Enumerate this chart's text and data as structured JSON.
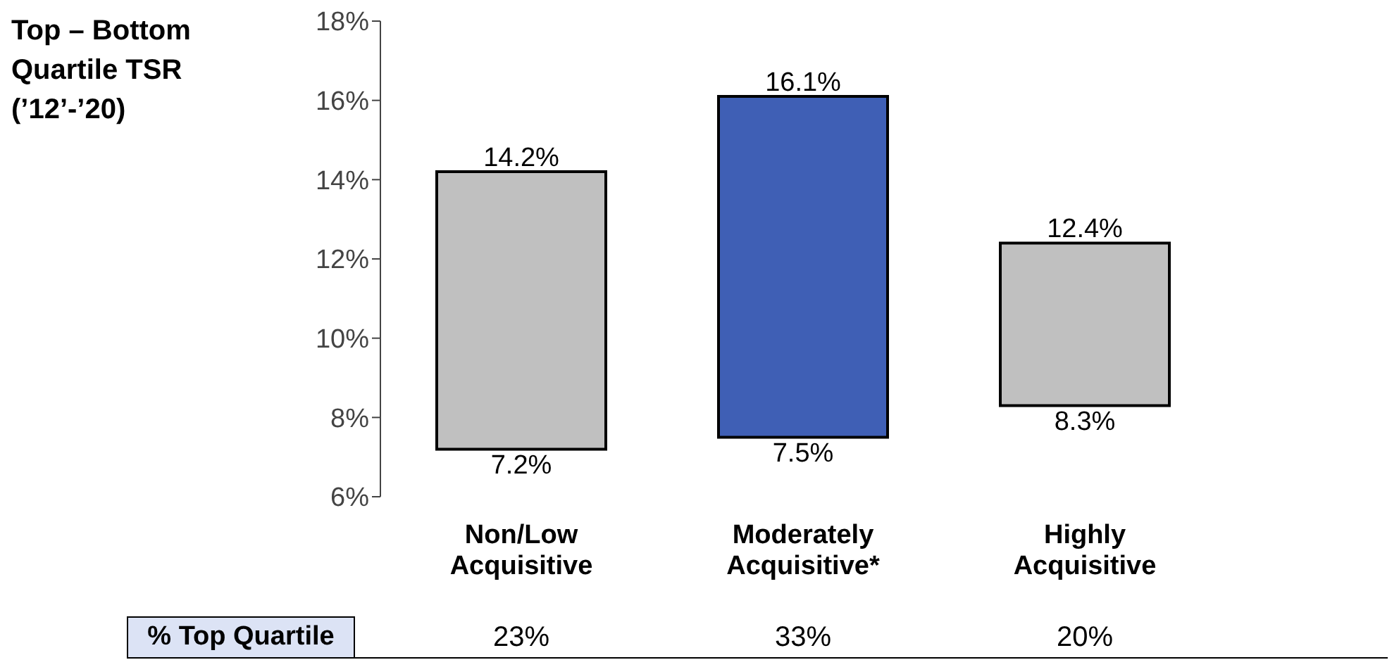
{
  "chart_data": {
    "type": "bar",
    "ylabel": "Top – Bottom Quartile TSR (’12’-’20)",
    "categories": [
      "Non/Low Acquisitive",
      "Moderately Acquisitive*",
      "Highly Acquisitive"
    ],
    "base": [
      7.2,
      7.5,
      8.3
    ],
    "values": [
      7.0,
      8.6,
      4.1
    ],
    "colors": [
      "#c0c0c0",
      "#3f5fb5",
      "#c0c0c0"
    ],
    "ylim": [
      6,
      18
    ],
    "yticks": [
      {
        "value": 6,
        "label": "6%"
      },
      {
        "value": 8,
        "label": "8%"
      },
      {
        "value": 10,
        "label": "10%"
      },
      {
        "value": 12,
        "label": "12%"
      },
      {
        "value": 14,
        "label": "14%"
      },
      {
        "value": 16,
        "label": "16%"
      },
      {
        "value": 18,
        "label": "18%"
      }
    ],
    "grid": false,
    "legend": false,
    "annotations": [
      {
        "text": "14.2%",
        "x": "Non/Low Acquisitive",
        "y": 14.2
      },
      {
        "text": "7.2%",
        "x": "Non/Low Acquisitive",
        "y": 7.2
      },
      {
        "text": "16.1%",
        "x": "Moderately Acquisitive*",
        "y": 16.1
      },
      {
        "text": "7.5%",
        "x": "Moderately Acquisitive*",
        "y": 7.5
      },
      {
        "text": "12.4%",
        "x": "Highly Acquisitive",
        "y": 12.4
      },
      {
        "text": "8.3%",
        "x": "Highly Acquisitive",
        "y": 8.3
      },
      "% Top Quartile",
      "23%",
      "33%",
      "20%"
    ]
  }
}
